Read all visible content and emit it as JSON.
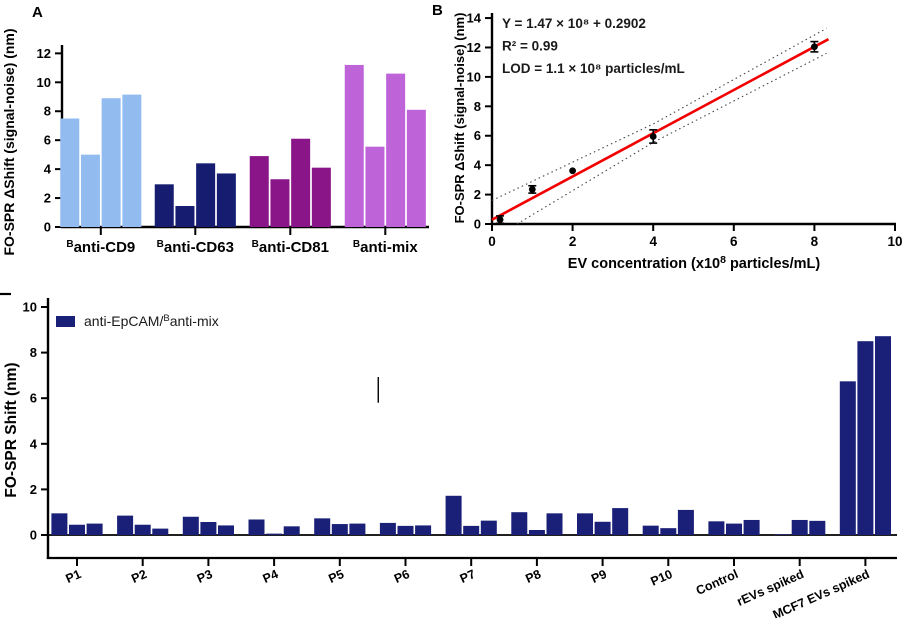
{
  "chart_data": [
    {
      "panel": "A",
      "type": "bar",
      "ylabel": "FO-SPR ΔShift (signal-noise) (nm)",
      "y_ticks": [
        0,
        2,
        4,
        6,
        8,
        10,
        12
      ],
      "ylim": [
        0,
        12.6
      ],
      "grid": false,
      "groups": [
        {
          "sup": "B",
          "label": "anti-CD9",
          "color": "#92BCF0",
          "values": [
            7.5,
            5.0,
            8.9,
            9.15
          ]
        },
        {
          "sup": "B",
          "label": "anti-CD63",
          "color": "#161C70",
          "values": [
            2.95,
            1.45,
            4.4,
            3.7
          ]
        },
        {
          "sup": "B",
          "label": "anti-CD81",
          "color": "#8A1588",
          "values": [
            4.9,
            3.3,
            6.1,
            4.1
          ]
        },
        {
          "sup": "B",
          "label": "anti-mix",
          "color": "#BF63D8",
          "values": [
            11.2,
            5.55,
            10.6,
            8.1
          ]
        }
      ]
    },
    {
      "panel": "B",
      "type": "scatter",
      "ylabel": "FO-SPR ΔShift (signal-noise) (nm)",
      "xlabel_parts": [
        "EV concentration (x10",
        "8",
        " particles/mL)"
      ],
      "y_ticks": [
        0,
        2,
        4,
        6,
        8,
        10,
        12,
        14
      ],
      "x_ticks": [
        0,
        2,
        4,
        6,
        8,
        10
      ],
      "xlim": [
        0,
        10
      ],
      "ylim": [
        0,
        14
      ],
      "grid": false,
      "annotation_lines": [
        "Y = 1.47 × 10⁸ + 0.2902",
        "R² = 0.99",
        "LOD = 1.1 × 10⁸ particles/mL"
      ],
      "points": [
        {
          "x": 0.2,
          "y": 0.3,
          "err": 0.25
        },
        {
          "x": 1,
          "y": 2.35,
          "err": 0.25
        },
        {
          "x": 2,
          "y": 3.62,
          "err": 0
        },
        {
          "x": 4,
          "y": 5.95,
          "err": 0.45
        },
        {
          "x": 8,
          "y": 12.05,
          "err": 0.35
        }
      ],
      "fit": {
        "slope": 1.47,
        "intercept": 0.29,
        "x_from": 0,
        "x_to": 8.35,
        "color": "#F20000"
      },
      "ci_upper": [
        [
          0,
          1.6
        ],
        [
          4,
          6.8
        ],
        [
          8.3,
          13.3
        ]
      ],
      "ci_lower": [
        [
          0.62,
          0
        ],
        [
          4,
          5.55
        ],
        [
          8.3,
          11.6
        ]
      ],
      "ci_color": "#444444",
      "point_color": "#000000"
    },
    {
      "panel": "C",
      "type": "bar",
      "ylabel": "FO-SPR Shift (nm)",
      "y_ticks": [
        0,
        2,
        4,
        6,
        8,
        10
      ],
      "ylim": [
        0,
        10
      ],
      "grid": false,
      "bar_color": "#1A2077",
      "legend": {
        "parts": [
          "anti-EpCAM/",
          "B",
          "anti-mix"
        ]
      },
      "categories": [
        "P1",
        "P2",
        "P3",
        "P4",
        "P5",
        "P6",
        "P7",
        "P8",
        "P9",
        "P10",
        "Control",
        "rEVs spiked",
        "MCF7 EVs spiked"
      ],
      "values": [
        [
          0.95,
          0.45,
          0.5
        ],
        [
          0.85,
          0.45,
          0.28
        ],
        [
          0.8,
          0.57,
          0.42
        ],
        [
          0.68,
          0.06,
          0.38
        ],
        [
          0.73,
          0.48,
          0.5
        ],
        [
          0.53,
          0.4,
          0.42
        ],
        [
          1.72,
          0.4,
          0.63
        ],
        [
          1.0,
          0.22,
          0.95
        ],
        [
          0.95,
          0.58,
          1.18
        ],
        [
          0.41,
          0.3,
          1.1
        ],
        [
          0.6,
          0.5,
          0.66
        ],
        [
          0.03,
          0.66,
          0.62
        ],
        [
          6.74,
          8.5,
          8.72
        ]
      ],
      "artifact_line": {
        "x_frac": 0.389,
        "y_from": 5.8,
        "y_to": 6.93
      },
      "cropped_panel_label_dash": true
    }
  ]
}
